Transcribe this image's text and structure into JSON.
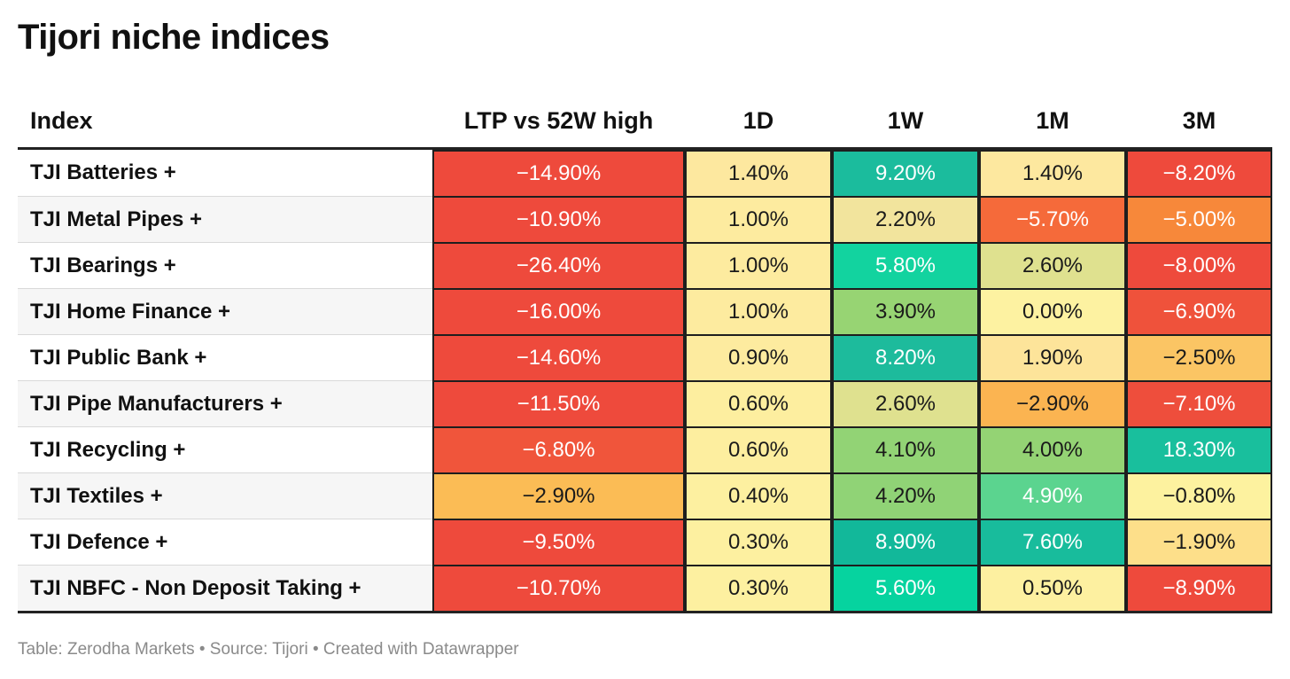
{
  "title": "Tijori niche indices",
  "footer": "Table: Zerodha Markets • Source: Tijori • Created with Datawrapper",
  "chart_data": {
    "type": "table",
    "title": "Tijori niche indices",
    "columns": [
      "Index",
      "LTP vs 52W high",
      "1D",
      "1W",
      "1M",
      "3M"
    ],
    "rows": [
      {
        "index": "TJI Batteries +",
        "values": [
          "−14.90%",
          "1.40%",
          "9.20%",
          "1.40%",
          "−8.20%"
        ],
        "colors": [
          "#ee4a3c",
          "#fde89f",
          "#1bbc9d",
          "#fde89f",
          "#ee4a3c"
        ]
      },
      {
        "index": "TJI Metal Pipes +",
        "values": [
          "−10.90%",
          "1.00%",
          "2.20%",
          "−5.70%",
          "−5.00%"
        ],
        "colors": [
          "#ee4a3c",
          "#fdeb9f",
          "#f2e49d",
          "#f56a3a",
          "#f7883a"
        ]
      },
      {
        "index": "TJI Bearings +",
        "values": [
          "−26.40%",
          "1.00%",
          "5.80%",
          "2.60%",
          "−8.00%"
        ],
        "colors": [
          "#ee4a3c",
          "#fdeb9f",
          "#12d39f",
          "#dfe18f",
          "#ee4a3c"
        ]
      },
      {
        "index": "TJI Home Finance +",
        "values": [
          "−16.00%",
          "1.00%",
          "3.90%",
          "0.00%",
          "−6.90%"
        ],
        "colors": [
          "#ee4a3c",
          "#fdeb9f",
          "#97d473",
          "#fdf2a1",
          "#ef523b"
        ]
      },
      {
        "index": "TJI Public Bank +",
        "values": [
          "−14.60%",
          "0.90%",
          "8.20%",
          "1.90%",
          "−2.50%"
        ],
        "colors": [
          "#ee4a3c",
          "#fdeb9f",
          "#1dbb9c",
          "#fde49a",
          "#fbc564"
        ]
      },
      {
        "index": "TJI Pipe Manufacturers +",
        "values": [
          "−11.50%",
          "0.60%",
          "2.60%",
          "−2.90%",
          "−7.10%"
        ],
        "colors": [
          "#ee4a3c",
          "#fdee9f",
          "#dfe18f",
          "#fbb451",
          "#ee4e3c"
        ]
      },
      {
        "index": "TJI Recycling +",
        "values": [
          "−6.80%",
          "0.60%",
          "4.10%",
          "4.00%",
          "18.30%"
        ],
        "colors": [
          "#f0553b",
          "#fdee9f",
          "#92d375",
          "#94d374",
          "#19bf9d"
        ]
      },
      {
        "index": "TJI Textiles +",
        "values": [
          "−2.90%",
          "0.40%",
          "4.20%",
          "4.90%",
          "−0.80%"
        ],
        "colors": [
          "#fbbc55",
          "#fdf0a0",
          "#90d376",
          "#5bd48f",
          "#fdf29f"
        ]
      },
      {
        "index": "TJI Defence +",
        "values": [
          "−9.50%",
          "0.30%",
          "8.90%",
          "7.60%",
          "−1.90%"
        ],
        "colors": [
          "#ee4a3c",
          "#fdf0a0",
          "#12b89a",
          "#18bc9c",
          "#fddf8a"
        ]
      },
      {
        "index": "TJI NBFC - Non Deposit Taking +",
        "values": [
          "−10.70%",
          "0.30%",
          "5.60%",
          "0.50%",
          "−8.90%"
        ],
        "colors": [
          "#ee4a3c",
          "#fdf0a0",
          "#06d39f",
          "#fdf0a0",
          "#ee4a3c"
        ]
      }
    ]
  }
}
